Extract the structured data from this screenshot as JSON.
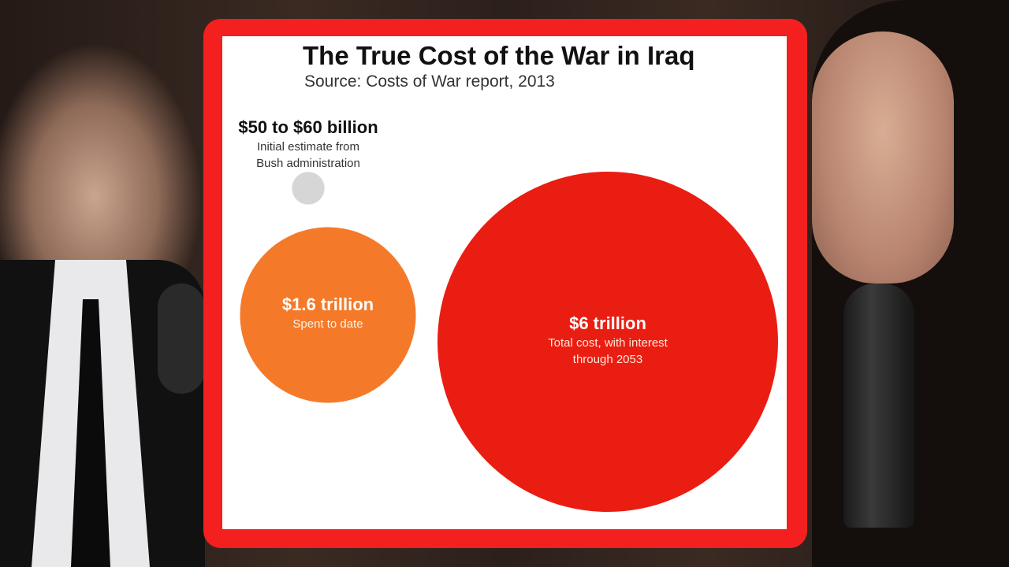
{
  "chart_data": {
    "type": "bubble",
    "title": "The True Cost of the War in Iraq",
    "subtitle": "Source: Costs of War report, 2013",
    "items": [
      {
        "value_label": "$50 to $60 billion",
        "description": [
          "Initial estimate from",
          "Bush administration"
        ],
        "value_billions": 55,
        "color": "#d6d6d6"
      },
      {
        "value_label": "$1.6 trillion",
        "description": [
          "Spent to date"
        ],
        "value_billions": 1600,
        "color": "#f47a2a"
      },
      {
        "value_label": "$6 trillion",
        "description": [
          "Total cost, with interest",
          "through 2053"
        ],
        "value_billions": 6000,
        "color": "#ea1d12"
      }
    ]
  },
  "colors": {
    "frame": "#f41f1f",
    "card": "#ffffff"
  }
}
